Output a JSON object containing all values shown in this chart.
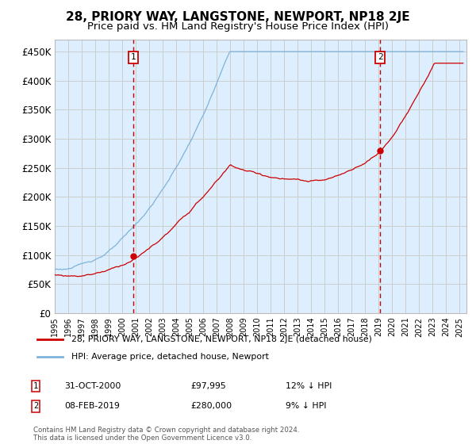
{
  "title": "28, PRIORY WAY, LANGSTONE, NEWPORT, NP18 2JE",
  "subtitle": "Price paid vs. HM Land Registry's House Price Index (HPI)",
  "ylabel_ticks": [
    "£0",
    "£50K",
    "£100K",
    "£150K",
    "£200K",
    "£250K",
    "£300K",
    "£350K",
    "£400K",
    "£450K"
  ],
  "ytick_values": [
    0,
    50000,
    100000,
    150000,
    200000,
    250000,
    300000,
    350000,
    400000,
    450000
  ],
  "ylim": [
    0,
    470000
  ],
  "xlim_start": 1995.0,
  "xlim_end": 2025.5,
  "sale1_x": 2000.83,
  "sale1_y": 97995,
  "sale2_x": 2019.1,
  "sale2_y": 280000,
  "sale1_label": "1",
  "sale2_label": "2",
  "sale1_date": "31-OCT-2000",
  "sale1_price": "£97,995",
  "sale1_hpi": "12% ↓ HPI",
  "sale2_date": "08-FEB-2019",
  "sale2_price": "£280,000",
  "sale2_hpi": "9% ↓ HPI",
  "legend_line1": "28, PRIORY WAY, LANGSTONE, NEWPORT, NP18 2JE (detached house)",
  "legend_line2": "HPI: Average price, detached house, Newport",
  "footer": "Contains HM Land Registry data © Crown copyright and database right 2024.\nThis data is licensed under the Open Government Licence v3.0.",
  "line_color_red": "#cc0000",
  "line_color_blue": "#7fb3d9",
  "grid_color": "#cccccc",
  "background_color": "#ddeeff",
  "vline_color": "#cc0000",
  "box_color": "#cc0000",
  "title_fontsize": 11,
  "subtitle_fontsize": 9.5
}
